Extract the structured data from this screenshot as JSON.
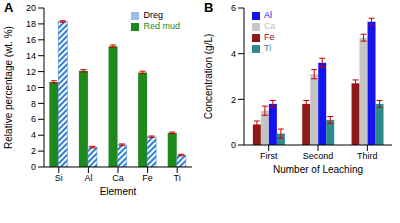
{
  "chart_data": [
    {
      "type": "bar",
      "title": "A",
      "x_label": "Element",
      "y_label": "Relative percentage (wt. %)",
      "categories": [
        "Si",
        "Al",
        "Ca",
        "Fe",
        "Ti"
      ],
      "series": [
        {
          "name": "Red mud",
          "color": "#1e8a1e",
          "values": [
            10.7,
            12.1,
            15.2,
            11.9,
            4.3
          ],
          "errors": [
            0.15,
            0.15,
            0.15,
            0.15,
            0.1
          ]
        },
        {
          "name": "Dreg",
          "color": "#2f7fd8",
          "marker": "hatch",
          "values": [
            18.3,
            2.5,
            2.8,
            3.8,
            1.5
          ],
          "errors": [
            0.1,
            0.1,
            0.1,
            0.1,
            0.1
          ]
        }
      ],
      "ylim": [
        0,
        20
      ],
      "yticks": [
        0,
        2,
        4,
        6,
        8,
        10,
        12,
        14,
        16,
        18,
        20
      ],
      "legend": "upper right",
      "grid": false
    },
    {
      "type": "bar",
      "title": "B",
      "x_label": "Number of Leaching",
      "y_label": "Concentration (g/L)",
      "categories": [
        "First",
        "Second",
        "Third"
      ],
      "series": [
        {
          "name": "Fe",
          "color": "#8b1a1a",
          "values": [
            0.9,
            1.8,
            2.7
          ],
          "errors": [
            0.15,
            0.15,
            0.15
          ]
        },
        {
          "name": "Ca",
          "color": "#c4c4c4",
          "values": [
            1.5,
            3.1,
            4.7
          ],
          "errors": [
            0.2,
            0.2,
            0.15
          ]
        },
        {
          "name": "Al",
          "color": "#1414f0",
          "values": [
            1.8,
            3.6,
            5.4
          ],
          "errors": [
            0.15,
            0.2,
            0.15
          ]
        },
        {
          "name": "Ti",
          "color": "#2e8b8b",
          "values": [
            0.5,
            1.1,
            1.8
          ],
          "errors": [
            0.2,
            0.15,
            0.15
          ]
        }
      ],
      "ylim": [
        0,
        6
      ],
      "yticks": [
        0,
        2,
        4,
        6
      ],
      "legend": "upper left",
      "grid": false
    }
  ]
}
